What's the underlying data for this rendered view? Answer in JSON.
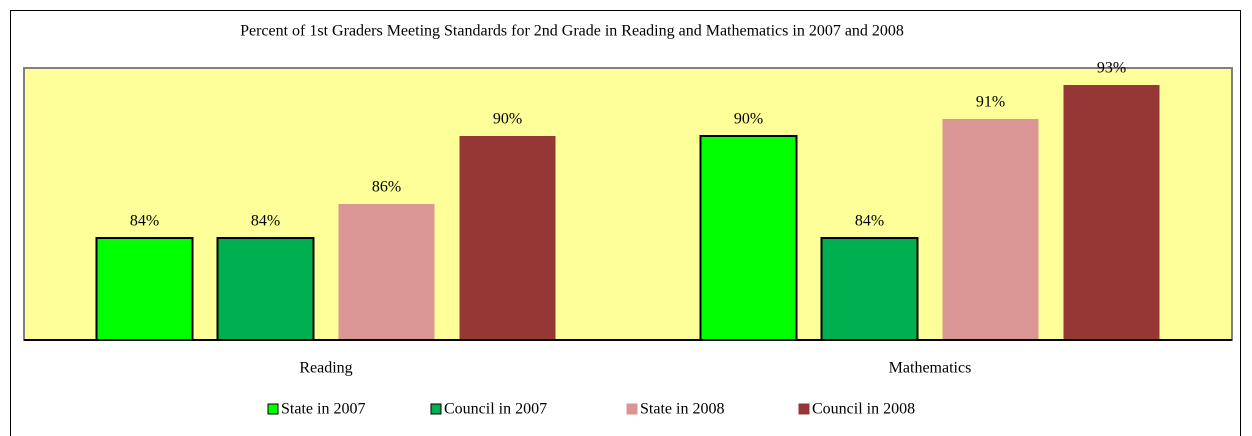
{
  "chart_data": {
    "type": "bar",
    "title": "Percent of 1st Graders Meeting Standards for 2nd Grade in Reading and Mathematics in 2007 and 2008",
    "categories": [
      "Reading",
      "Mathematics"
    ],
    "series": [
      {
        "name": "State in 2007",
        "color": "#00ff00",
        "edgecolor": "#000000",
        "values": [
          84,
          90
        ],
        "value_labels": [
          "84%",
          "90%"
        ]
      },
      {
        "name": "Council in 2007",
        "color": "#00b050",
        "edgecolor": "#000000",
        "values": [
          84,
          84
        ],
        "value_labels": [
          "84%",
          "84%"
        ]
      },
      {
        "name": "State in 2008",
        "color": "#d99694",
        "values": [
          86,
          91
        ],
        "value_labels": [
          "86%",
          "91%"
        ]
      },
      {
        "name": "Council in 2008",
        "color": "#953735",
        "values": [
          90,
          93
        ],
        "value_labels": [
          "90%",
          "93%"
        ]
      }
    ],
    "ylim": [
      78,
      94
    ],
    "plot_background": "#ffff99",
    "legend": "bottom"
  }
}
